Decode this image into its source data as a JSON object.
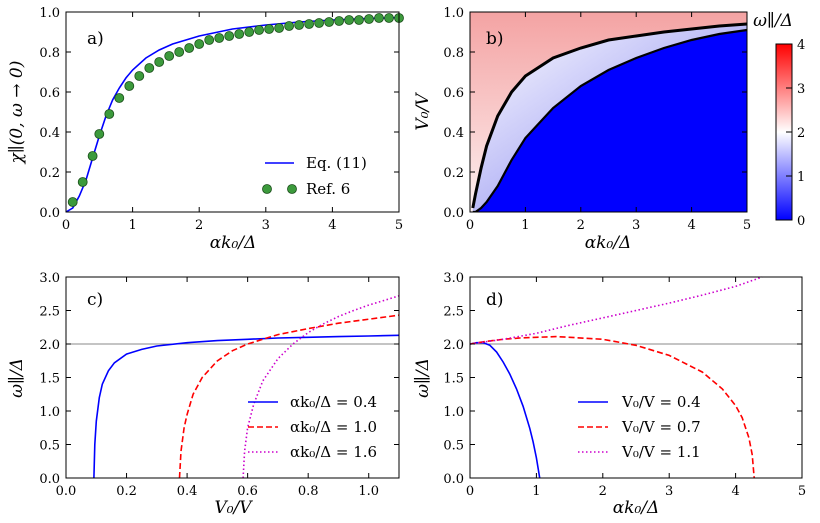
{
  "chart_data": [
    {
      "panel": "a)",
      "type": "line",
      "xlabel": "αk₀/Δ",
      "ylabel": "χ∥(0, ω → 0)",
      "xlim": [
        0,
        5
      ],
      "ylim": [
        0,
        1.0
      ],
      "xticks": [
        "0",
        "1",
        "2",
        "3",
        "4",
        "5"
      ],
      "yticks": [
        "0.0",
        "0.2",
        "0.4",
        "0.6",
        "0.8",
        "1.0"
      ],
      "legend_position": "lower-right",
      "series": [
        {
          "name": "Eq. (11)",
          "color": "#0000ff",
          "style": "line",
          "x": [
            0,
            0.1,
            0.2,
            0.3,
            0.4,
            0.5,
            0.6,
            0.7,
            0.8,
            0.9,
            1.0,
            1.2,
            1.4,
            1.6,
            1.8,
            2.0,
            2.5,
            3.0,
            3.5,
            4.0,
            4.5,
            5.0
          ],
          "y": [
            0,
            0.02,
            0.08,
            0.16,
            0.27,
            0.38,
            0.48,
            0.56,
            0.62,
            0.67,
            0.71,
            0.77,
            0.81,
            0.84,
            0.86,
            0.88,
            0.915,
            0.935,
            0.95,
            0.96,
            0.967,
            0.972
          ]
        },
        {
          "name": "Ref. 6",
          "color": "#3c9a3c",
          "style": "markers",
          "x": [
            0.1,
            0.25,
            0.4,
            0.5,
            0.65,
            0.8,
            0.95,
            1.1,
            1.25,
            1.4,
            1.55,
            1.7,
            1.85,
            2.0,
            2.15,
            2.3,
            2.45,
            2.6,
            2.75,
            2.9,
            3.05,
            3.2,
            3.35,
            3.5,
            3.65,
            3.8,
            3.95,
            4.1,
            4.25,
            4.4,
            4.55,
            4.7,
            4.85,
            5.0
          ],
          "y": [
            0.05,
            0.15,
            0.28,
            0.39,
            0.49,
            0.57,
            0.63,
            0.68,
            0.72,
            0.75,
            0.78,
            0.8,
            0.82,
            0.84,
            0.86,
            0.87,
            0.88,
            0.89,
            0.9,
            0.91,
            0.915,
            0.92,
            0.93,
            0.935,
            0.94,
            0.945,
            0.95,
            0.955,
            0.96,
            0.96,
            0.965,
            0.97,
            0.97,
            0.97
          ]
        }
      ]
    },
    {
      "panel": "b)",
      "type": "heatmap",
      "xlabel": "αk₀/Δ",
      "ylabel": "V₀/V",
      "xlim": [
        0,
        5
      ],
      "ylim": [
        0,
        1.0
      ],
      "xticks": [
        "0",
        "1",
        "2",
        "3",
        "4",
        "5"
      ],
      "yticks": [
        "0.0",
        "0.2",
        "0.4",
        "0.6",
        "0.8",
        "1.0"
      ],
      "colorbar": {
        "label": "ω∥/Δ",
        "range": [
          0,
          4
        ],
        "ticks": [
          "0",
          "1",
          "2",
          "3",
          "4"
        ],
        "colors": [
          "#0000ff",
          "#ffffff",
          "#ff0000"
        ]
      },
      "upper_contour": {
        "x": [
          0.05,
          0.1,
          0.2,
          0.3,
          0.5,
          0.75,
          1.0,
          1.5,
          2.0,
          2.5,
          3.0,
          3.5,
          4.0,
          4.5,
          5.0
        ],
        "y": [
          0.02,
          0.09,
          0.22,
          0.33,
          0.48,
          0.6,
          0.68,
          0.77,
          0.82,
          0.86,
          0.88,
          0.9,
          0.915,
          0.93,
          0.94
        ]
      },
      "lower_contour": {
        "x": [
          0.05,
          0.1,
          0.2,
          0.3,
          0.5,
          0.75,
          1.0,
          1.5,
          2.0,
          2.5,
          3.0,
          3.5,
          4.0,
          4.5,
          5.0
        ],
        "y": [
          0.0,
          0.0,
          0.02,
          0.05,
          0.13,
          0.26,
          0.37,
          0.52,
          0.63,
          0.71,
          0.77,
          0.82,
          0.86,
          0.89,
          0.91
        ]
      }
    },
    {
      "panel": "c)",
      "type": "line",
      "xlabel": "V₀/V",
      "ylabel": "ω∥/Δ",
      "xlim": [
        0,
        1.1
      ],
      "ylim": [
        0,
        3.0
      ],
      "xticks": [
        "0.0",
        "0.2",
        "0.4",
        "0.6",
        "0.8",
        "1.0"
      ],
      "yticks": [
        "0.0",
        "0.5",
        "1.0",
        "1.5",
        "2.0",
        "2.5",
        "3.0"
      ],
      "reference_line": 2.0,
      "legend_position": "lower-right",
      "series": [
        {
          "name": "αk₀/Δ = 0.4",
          "color": "#0000ff",
          "dash": "solid",
          "x": [
            0.092,
            0.095,
            0.1,
            0.11,
            0.12,
            0.14,
            0.16,
            0.2,
            0.25,
            0.3,
            0.4,
            0.5,
            0.6,
            0.7,
            0.8,
            0.9,
            1.0,
            1.1
          ],
          "y": [
            0.0,
            0.5,
            0.85,
            1.2,
            1.4,
            1.6,
            1.72,
            1.85,
            1.92,
            1.97,
            2.02,
            2.05,
            2.07,
            2.09,
            2.1,
            2.11,
            2.12,
            2.13
          ]
        },
        {
          "name": "αk₀/Δ = 1.0",
          "color": "#ff0000",
          "dash": "dashed",
          "x": [
            0.375,
            0.38,
            0.39,
            0.4,
            0.42,
            0.45,
            0.5,
            0.55,
            0.6,
            0.7,
            0.8,
            0.9,
            1.0,
            1.1
          ],
          "y": [
            0.0,
            0.4,
            0.75,
            0.95,
            1.25,
            1.5,
            1.75,
            1.9,
            2.0,
            2.14,
            2.23,
            2.31,
            2.37,
            2.43
          ]
        },
        {
          "name": "αk₀/Δ = 1.6",
          "color": "#cc00cc",
          "dash": "dotted",
          "x": [
            0.585,
            0.59,
            0.6,
            0.62,
            0.65,
            0.7,
            0.75,
            0.8,
            0.85,
            0.9,
            0.95,
            1.0,
            1.05,
            1.1
          ],
          "y": [
            0.0,
            0.4,
            0.75,
            1.1,
            1.45,
            1.78,
            2.0,
            2.17,
            2.3,
            2.41,
            2.5,
            2.58,
            2.65,
            2.72
          ]
        }
      ],
      "legend_labels": [
        "αk₀/Δ = 0.4",
        "αk₀/Δ = 1.0",
        "αk₀/Δ = 1.6"
      ]
    },
    {
      "panel": "d)",
      "type": "line",
      "xlabel": "αk₀/Δ",
      "ylabel": "ω∥/Δ",
      "xlim": [
        0,
        5
      ],
      "ylim": [
        0,
        3.0
      ],
      "xticks": [
        "0",
        "1",
        "2",
        "3",
        "4",
        "5"
      ],
      "yticks": [
        "0.0",
        "0.5",
        "1.0",
        "1.5",
        "2.0",
        "2.5",
        "3.0"
      ],
      "reference_line": 2.0,
      "legend_position": "lower-right",
      "series": [
        {
          "name": "V₀/V = 0.4",
          "color": "#0000ff",
          "dash": "solid",
          "x": [
            0.0,
            0.1,
            0.2,
            0.3,
            0.4,
            0.5,
            0.6,
            0.7,
            0.8,
            0.9,
            0.95,
            1.0,
            1.03,
            1.05
          ],
          "y": [
            2.0,
            2.02,
            2.02,
            1.98,
            1.88,
            1.73,
            1.55,
            1.33,
            1.07,
            0.74,
            0.54,
            0.3,
            0.12,
            0.0
          ]
        },
        {
          "name": "V₀/V = 0.7",
          "color": "#ff0000",
          "dash": "dashed",
          "x": [
            0.0,
            0.25,
            0.5,
            0.75,
            1.0,
            1.3,
            1.5,
            2.0,
            2.5,
            3.0,
            3.5,
            3.8,
            4.0,
            4.1,
            4.2,
            4.25,
            4.28
          ],
          "y": [
            2.0,
            2.04,
            2.07,
            2.09,
            2.1,
            2.11,
            2.1,
            2.07,
            1.98,
            1.83,
            1.58,
            1.33,
            1.08,
            0.9,
            0.6,
            0.35,
            0.0
          ]
        },
        {
          "name": "V₀/V = 1.1",
          "color": "#cc00cc",
          "dash": "dotted",
          "x": [
            0.0,
            0.5,
            1.0,
            1.5,
            2.0,
            2.5,
            3.0,
            3.5,
            4.0,
            4.4
          ],
          "y": [
            2.0,
            2.07,
            2.16,
            2.28,
            2.39,
            2.5,
            2.61,
            2.73,
            2.86,
            3.0
          ]
        }
      ],
      "legend_labels": [
        "V₀/V = 0.4",
        "V₀/V = 0.7",
        "V₀/V = 1.1"
      ]
    }
  ]
}
